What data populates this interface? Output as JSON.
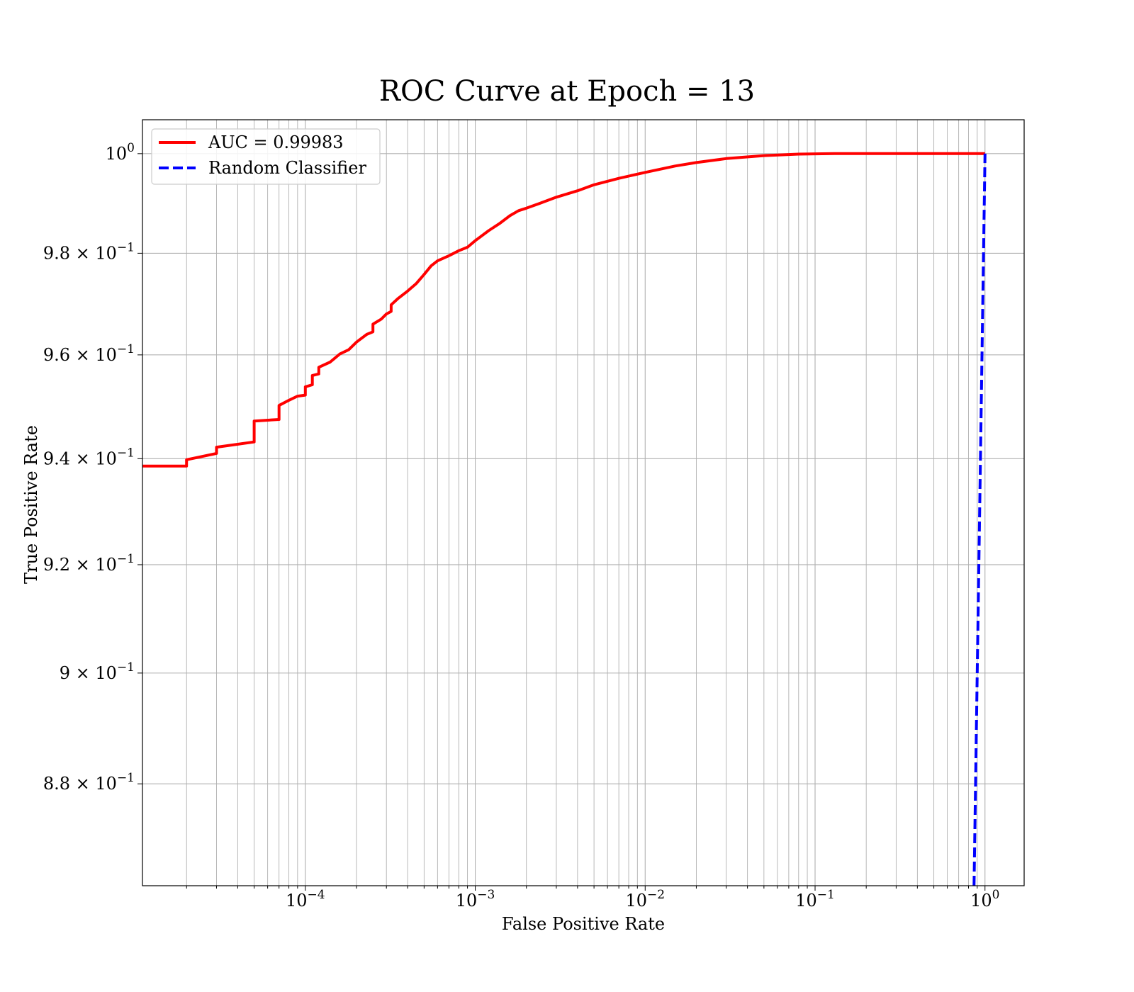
{
  "chart_data": {
    "type": "line",
    "title": "ROC Curve at Epoch = 13",
    "xlabel": "False Positive Rate",
    "ylabel": "True Positive Rate",
    "xscale": "log",
    "yscale": "log",
    "xlim": [
      1.1e-05,
      1.7
    ],
    "ylim": [
      0.862,
      1.0069
    ],
    "grid": true,
    "grid_minor": true,
    "legend_position": "upper-left",
    "x_ticks": [
      {
        "value": 0.0001,
        "base": "10",
        "exp": "−4"
      },
      {
        "value": 0.001,
        "base": "10",
        "exp": "−3"
      },
      {
        "value": 0.01,
        "base": "10",
        "exp": "−2"
      },
      {
        "value": 0.1,
        "base": "10",
        "exp": "−1"
      },
      {
        "value": 1,
        "base": "10",
        "exp": "0"
      }
    ],
    "y_ticks": [
      {
        "value": 0.88,
        "mant": "8.8 × ",
        "base": "10",
        "exp": "−1"
      },
      {
        "value": 0.9,
        "mant": "9 × ",
        "base": "10",
        "exp": "−1"
      },
      {
        "value": 0.92,
        "mant": "9.2 × ",
        "base": "10",
        "exp": "−1"
      },
      {
        "value": 0.94,
        "mant": "9.4 × ",
        "base": "10",
        "exp": "−1"
      },
      {
        "value": 0.96,
        "mant": "9.6 × ",
        "base": "10",
        "exp": "−1"
      },
      {
        "value": 0.98,
        "mant": "9.8 × ",
        "base": "10",
        "exp": "−1"
      },
      {
        "value": 1.0,
        "mant": "",
        "base": "10",
        "exp": "0"
      }
    ],
    "series": [
      {
        "name": "AUC = 0.99983",
        "color": "#ff0000",
        "style": "solid",
        "x": [
          1e-05,
          2e-05,
          2e-05,
          3e-05,
          3e-05,
          5e-05,
          5e-05,
          7e-05,
          7e-05,
          8e-05,
          9e-05,
          0.0001,
          0.0001,
          0.00011,
          0.00011,
          0.00012,
          0.00012,
          0.00014,
          0.00016,
          0.00018,
          0.0002,
          0.00023,
          0.00025,
          0.00025,
          0.00028,
          0.0003,
          0.00032,
          0.00032,
          0.00035,
          0.0004,
          0.00045,
          0.0005,
          0.00055,
          0.0006,
          0.0007,
          0.0008,
          0.0009,
          0.001,
          0.0012,
          0.0014,
          0.0016,
          0.0018,
          0.002,
          0.0025,
          0.003,
          0.004,
          0.005,
          0.007,
          0.01,
          0.015,
          0.02,
          0.03,
          0.05,
          0.08,
          0.13,
          0.2,
          0.5,
          1.0
        ],
        "y": [
          0.9386,
          0.9386,
          0.9398,
          0.941,
          0.9422,
          0.9432,
          0.9472,
          0.9475,
          0.9502,
          0.9512,
          0.952,
          0.9522,
          0.9538,
          0.9542,
          0.956,
          0.9563,
          0.9576,
          0.9586,
          0.9602,
          0.961,
          0.9625,
          0.964,
          0.9645,
          0.966,
          0.967,
          0.968,
          0.9685,
          0.9698,
          0.971,
          0.9725,
          0.974,
          0.9758,
          0.9775,
          0.9785,
          0.9795,
          0.9805,
          0.9812,
          0.9825,
          0.9845,
          0.986,
          0.9875,
          0.9885,
          0.989,
          0.9902,
          0.9912,
          0.9925,
          0.9937,
          0.995,
          0.9962,
          0.9975,
          0.9982,
          0.999,
          0.9996,
          0.9999,
          1.0,
          1.0,
          1.0,
          1.0
        ]
      },
      {
        "name": "Random Classifier",
        "color": "#0000ff",
        "style": "dashed",
        "x": [
          0.862,
          1.0
        ],
        "y": [
          0.862,
          1.0
        ]
      }
    ]
  }
}
